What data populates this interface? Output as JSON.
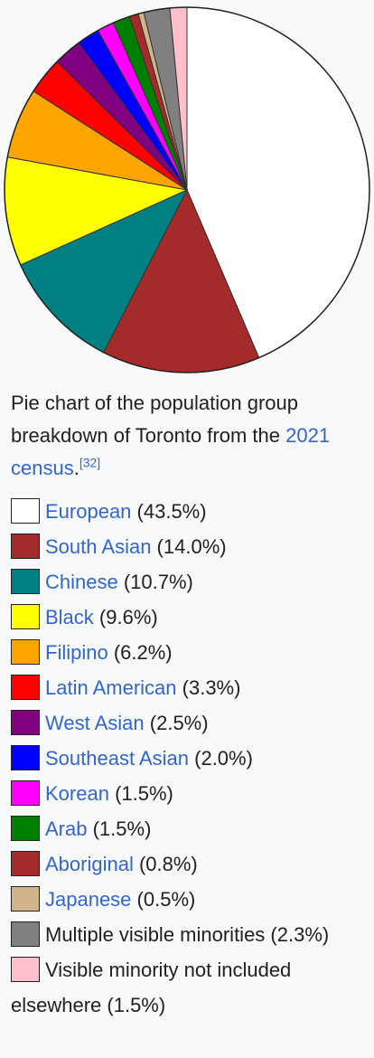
{
  "chart_data": {
    "type": "pie",
    "slices": [
      {
        "label": "European",
        "value": 43.5,
        "color": "#ffffff"
      },
      {
        "label": "South Asian",
        "value": 14.0,
        "color": "#a52a2a"
      },
      {
        "label": "Chinese",
        "value": 10.7,
        "color": "#008080"
      },
      {
        "label": "Black",
        "value": 9.6,
        "color": "#ffff00"
      },
      {
        "label": "Filipino",
        "value": 6.2,
        "color": "#ffa500"
      },
      {
        "label": "Latin American",
        "value": 3.3,
        "color": "#ff0000"
      },
      {
        "label": "West Asian",
        "value": 2.5,
        "color": "#800080"
      },
      {
        "label": "Southeast Asian",
        "value": 2.0,
        "color": "#0000ff"
      },
      {
        "label": "Korean",
        "value": 1.5,
        "color": "#ff00ff"
      },
      {
        "label": "Arab",
        "value": 1.5,
        "color": "#008000"
      },
      {
        "label": "Aboriginal",
        "value": 0.8,
        "color": "#a52a2a"
      },
      {
        "label": "Japanese",
        "value": 0.5,
        "color": "#d2b48c"
      },
      {
        "label": "Multiple visible minorities",
        "value": 2.3,
        "color": "#808080"
      },
      {
        "label": "Visible minority not included elsewhere",
        "value": 1.5,
        "color": "#ffc0cb"
      }
    ]
  },
  "caption": {
    "text": "Pie chart of the population group breakdown of Toronto from the ",
    "link": "2021 census",
    "period": ".",
    "ref": "[32]"
  },
  "legend": [
    {
      "label": "European",
      "pct": " (43.5%)",
      "linked": true
    },
    {
      "label": "South Asian",
      "pct": " (14.0%)",
      "linked": true
    },
    {
      "label": "Chinese",
      "pct": " (10.7%)",
      "linked": true
    },
    {
      "label": "Black",
      "pct": " (9.6%)",
      "linked": true
    },
    {
      "label": "Filipino",
      "pct": " (6.2%)",
      "linked": true
    },
    {
      "label": "Latin American",
      "pct": " (3.3%)",
      "linked": true
    },
    {
      "label": "West Asian",
      "pct": " (2.5%)",
      "linked": true
    },
    {
      "label": "Southeast Asian",
      "pct": " (2.0%)",
      "linked": true
    },
    {
      "label": "Korean",
      "pct": " (1.5%)",
      "linked": true
    },
    {
      "label": "Arab",
      "pct": " (1.5%)",
      "linked": true
    },
    {
      "label": "Aboriginal",
      "pct": " (0.8%)",
      "linked": true
    },
    {
      "label": "Japanese",
      "pct": " (0.5%)",
      "linked": true
    },
    {
      "label": "Multiple visible minorities",
      "pct": " (2.3%)",
      "linked": false
    },
    {
      "label": "Visible minority not included elsewhere",
      "pct": " (1.5%)",
      "linked": false
    }
  ]
}
